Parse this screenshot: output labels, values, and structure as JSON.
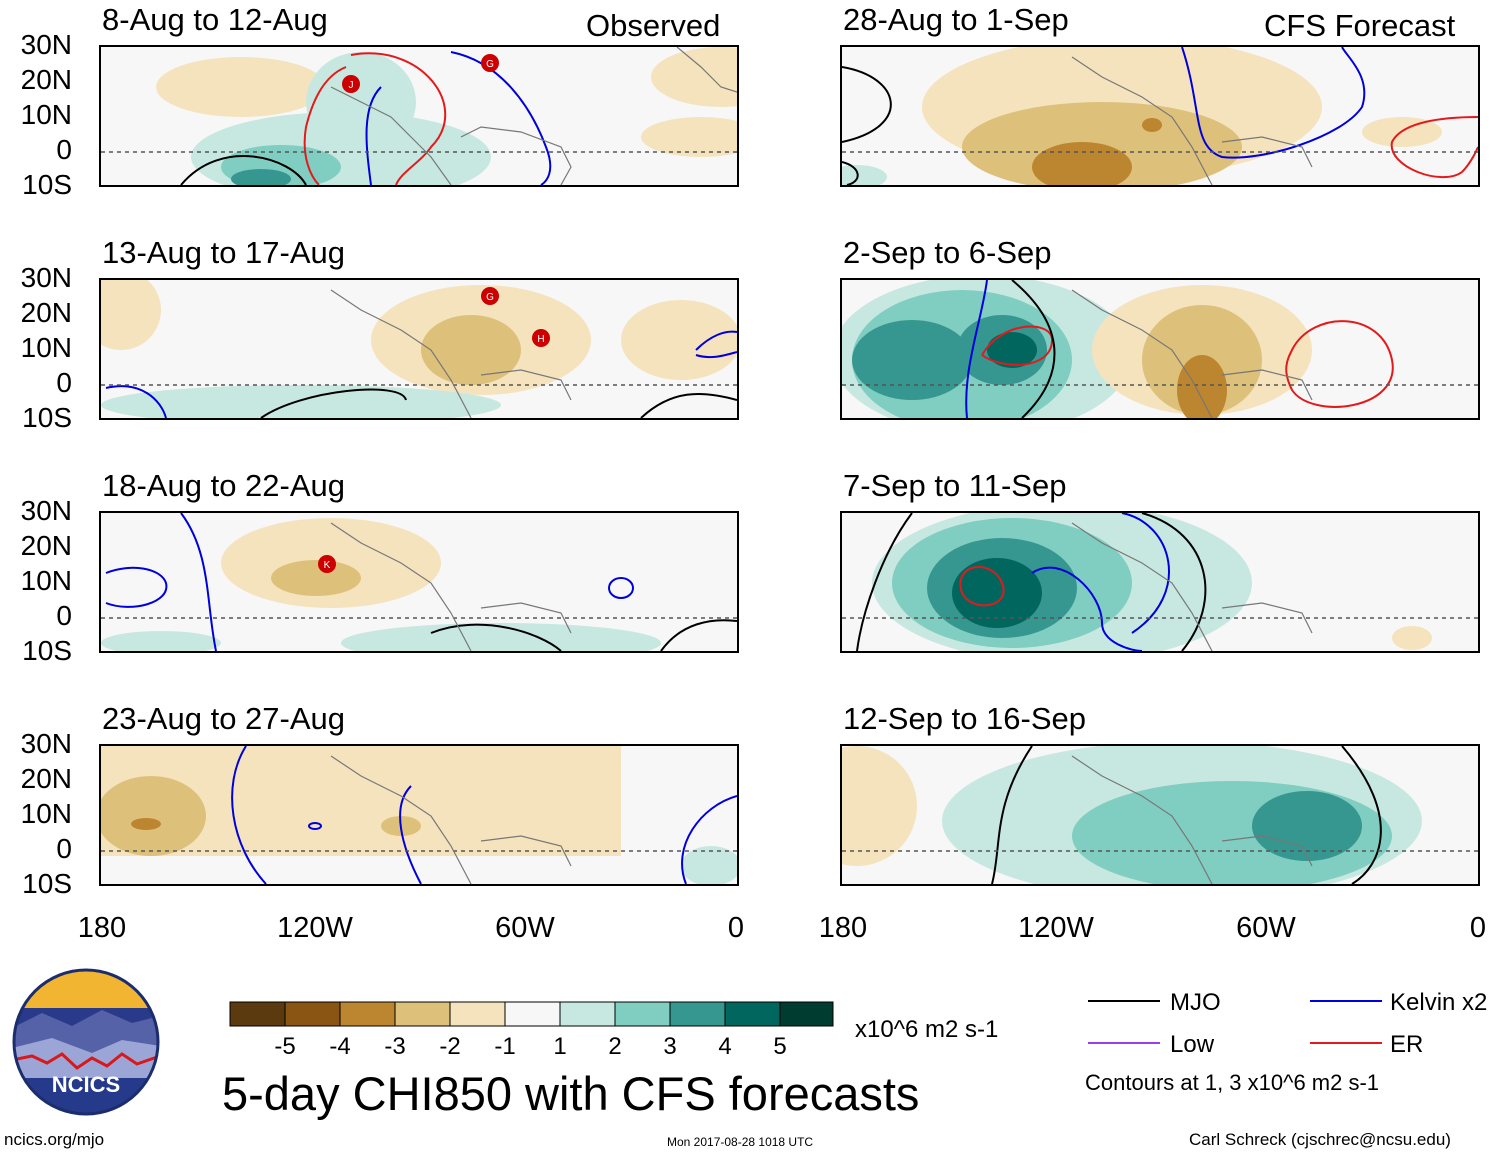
{
  "panels": [
    {
      "title": "8-Aug to 12-Aug",
      "tag": "Observed"
    },
    {
      "title": "13-Aug to 17-Aug",
      "tag": ""
    },
    {
      "title": "18-Aug to 22-Aug",
      "tag": ""
    },
    {
      "title": "23-Aug to 27-Aug",
      "tag": ""
    },
    {
      "title": "28-Aug to 1-Sep",
      "tag": "CFS Forecast"
    },
    {
      "title": "2-Sep to 6-Sep",
      "tag": ""
    },
    {
      "title": "7-Sep to 11-Sep",
      "tag": ""
    },
    {
      "title": "12-Sep to 16-Sep",
      "tag": ""
    }
  ],
  "lat_labels": [
    "30N",
    "20N",
    "10N",
    "0",
    "10S"
  ],
  "lon_labels": [
    "180",
    "120W",
    "60W",
    "0"
  ],
  "storm_markers": [
    {
      "panel": 0,
      "label": "J"
    },
    {
      "panel": 0,
      "label": "G"
    },
    {
      "panel": 1,
      "label": "G"
    },
    {
      "panel": 1,
      "label": "H"
    },
    {
      "panel": 2,
      "label": "K"
    }
  ],
  "colorbar": {
    "labels": [
      "-5",
      "-4",
      "-3",
      "-2",
      "-1",
      "1",
      "2",
      "3",
      "4",
      "5"
    ],
    "colors": [
      "#5a3a0e",
      "#8a5412",
      "#bc8530",
      "#ddc07a",
      "#f5e3bd",
      "#f7f7f7",
      "#c7e8e0",
      "#80cdc1",
      "#35978f",
      "#01665e",
      "#003c30"
    ],
    "units": "x10^6 m2 s-1"
  },
  "main_title": "5-day CHI850 with CFS forecasts",
  "legend": {
    "items": [
      {
        "label": "MJO",
        "color": "#000000"
      },
      {
        "label": "Kelvin x2",
        "color": "#0000dd"
      },
      {
        "label": "Low",
        "color": "#9b3cf0"
      },
      {
        "label": "ER",
        "color": "#e31a1c"
      }
    ],
    "contours": "Contours at 1, 3 x10^6 m2 s-1"
  },
  "logo_text": "NCICS",
  "footer": {
    "url": "ncics.org/mjo",
    "timestamp": "Mon 2017-08-28 1018 UTC",
    "credit": "Carl Schreck (cjschrec@ncsu.edu)"
  }
}
